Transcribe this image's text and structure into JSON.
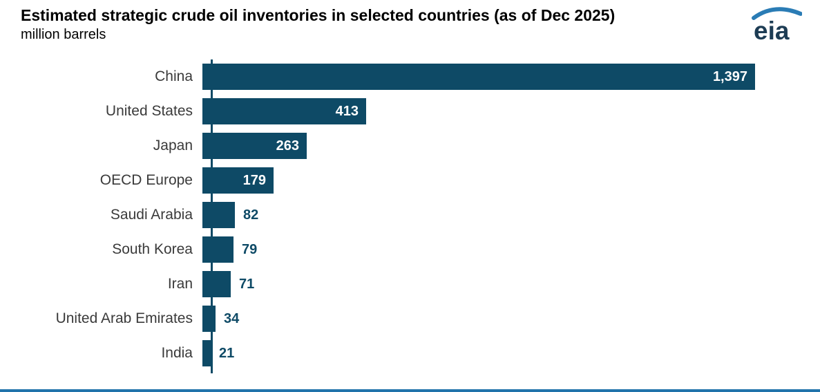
{
  "header": {
    "title": "Estimated strategic crude oil inventories in selected countries (as of Dec 2025)",
    "subtitle": "million barrels"
  },
  "logo": {
    "text": "eia"
  },
  "chart_data": {
    "type": "bar",
    "orientation": "horizontal",
    "title": "Estimated strategic crude oil inventories in selected countries (as of Dec 2025)",
    "unit_label": "million barrels",
    "categories": [
      "China",
      "United States",
      "Japan",
      "OECD Europe",
      "Saudi Arabia",
      "South Korea",
      "Iran",
      "United Arab Emirates",
      "India"
    ],
    "values": [
      1397,
      413,
      263,
      179,
      82,
      79,
      71,
      34,
      21
    ],
    "value_labels": [
      "1,397",
      "413",
      "263",
      "179",
      "82",
      "79",
      "71",
      "34",
      "21"
    ],
    "xlim": [
      0,
      1397
    ],
    "grid": false,
    "legend": "none",
    "value_label_position_rule": "inside bar when bar is wide enough, otherwise outside right of bar"
  },
  "colors": {
    "bar": "#0e4a66",
    "value_inside": "#ffffff",
    "value_outside": "#0e4a66",
    "category_label": "#3a3a3a",
    "axis_line": "#0e4a66",
    "footer_line": "#2173ab",
    "logo_text": "#1d3c54",
    "logo_arc": "#2a7cb5"
  }
}
